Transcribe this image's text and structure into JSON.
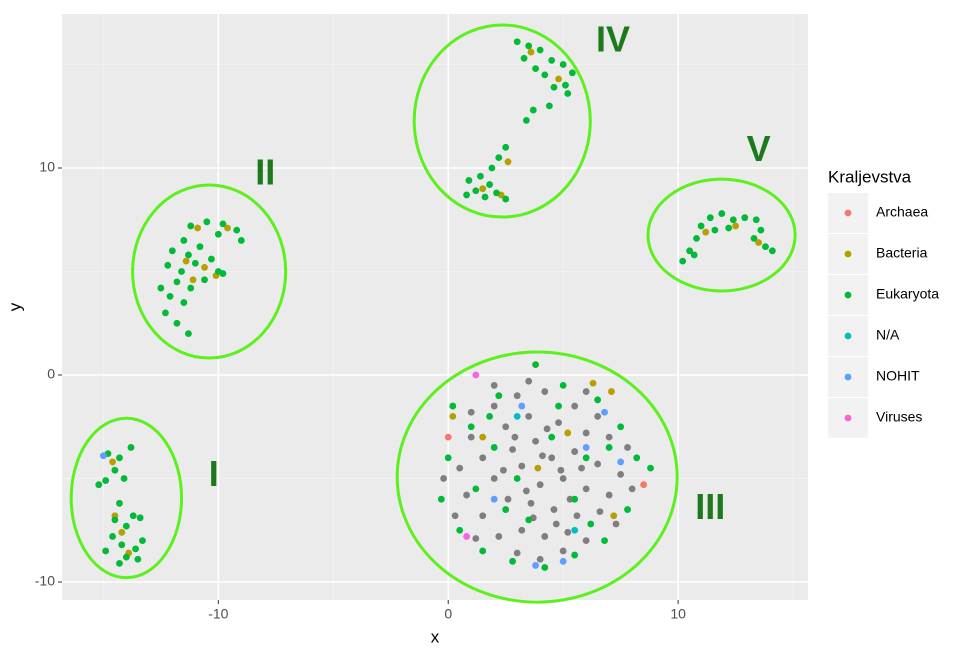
{
  "chart_data": {
    "type": "scatter",
    "xlabel": "x",
    "ylabel": "y",
    "legend_title": "Kraljevstva",
    "xlim": [
      -16.8,
      15.65
    ],
    "ylim": [
      -10.87,
      17.44
    ],
    "xticks": [
      -10,
      0,
      10
    ],
    "yticks": [
      -10,
      0,
      10
    ],
    "x_minor_grid": [
      -15,
      -5,
      5,
      15
    ],
    "y_minor_grid": [
      -5,
      5,
      15
    ],
    "grid": true,
    "legend": "right",
    "series": [
      {
        "name": null,
        "color": "#7f7f7f",
        "x": [
          2.0,
          3.0,
          4.2,
          5.5,
          6.5,
          1.0,
          2.5,
          3.5,
          4.8,
          6.0,
          7.0,
          0.5,
          1.5,
          2.8,
          3.8,
          4.5,
          5.5,
          6.5,
          7.5,
          0.8,
          2.0,
          3.2,
          4.0,
          5.0,
          6.0,
          7.0,
          1.5,
          2.6,
          3.6,
          4.6,
          5.6,
          6.6,
          2.2,
          3.2,
          4.2,
          5.2,
          6.0,
          3.0,
          4.0,
          5.0,
          1.0,
          2.0,
          3.5,
          6.0,
          7.8,
          8.0,
          -0.2,
          0.3,
          1.2,
          7.3,
          4.3,
          3.4,
          4.9,
          2.4,
          5.8,
          4.1,
          3.7,
          4.7,
          2.9,
          5.3
        ],
        "values": [
          -1.5,
          -1.0,
          -0.8,
          -1.5,
          -2.0,
          -3.0,
          -2.5,
          -2.0,
          -2.3,
          -2.8,
          -3.0,
          -4.5,
          -4.0,
          -3.6,
          -3.2,
          -4.0,
          -3.7,
          -4.3,
          -4.8,
          -5.8,
          -5.0,
          -4.4,
          -5.3,
          -5.0,
          -5.5,
          -5.8,
          -6.8,
          -6.0,
          -6.2,
          -6.5,
          -6.8,
          -6.6,
          -7.8,
          -7.5,
          -7.8,
          -7.6,
          -8.0,
          -8.6,
          -8.9,
          -8.5,
          -1.8,
          -0.5,
          -0.3,
          -0.8,
          -3.5,
          -5.5,
          -5.0,
          -6.8,
          -7.9,
          -7.2,
          -2.6,
          -5.6,
          -4.6,
          -4.6,
          -4.5,
          -3.9,
          -6.9,
          -7.2,
          -3.0,
          -6.0
        ]
      },
      {
        "name": "Archaea",
        "color": "#F8766D",
        "x": [
          8.5,
          0.0
        ],
        "values": [
          -5.3,
          -3.0
        ]
      },
      {
        "name": "Bacteria",
        "color": "#B79F00",
        "x": [
          -14.5,
          -14.2,
          -14.6,
          -13.9,
          -10.9,
          -11.4,
          -10.6,
          -10.1,
          -9.6,
          -11.1,
          3.6,
          4.8,
          1.5,
          2.3,
          2.6,
          12.5,
          13.5,
          11.2,
          6.3,
          7.1,
          1.5,
          3.9,
          5.2,
          7.2,
          0.2
        ],
        "values": [
          -6.8,
          -7.6,
          -4.2,
          -8.6,
          7.1,
          5.5,
          5.2,
          4.8,
          7.1,
          4.6,
          15.6,
          14.3,
          9.0,
          8.7,
          10.3,
          7.2,
          6.4,
          6.9,
          -0.4,
          -0.8,
          -3.0,
          -4.5,
          -2.8,
          -6.8,
          -2.0
        ]
      },
      {
        "name": "Eukaryota",
        "color": "#00BA38",
        "x": [
          -14.8,
          -14.3,
          -13.8,
          -14.5,
          -14.1,
          -15.2,
          -14.9,
          -14.3,
          -13.7,
          -14.5,
          -14.0,
          -13.4,
          -14.6,
          -14.2,
          -13.6,
          -13.3,
          -14.0,
          -13.5,
          -14.3,
          -14.9,
          -11.2,
          -10.5,
          -9.8,
          -9.2,
          -9.0,
          -10.0,
          -11.5,
          -12.0,
          -11.3,
          -10.8,
          -12.2,
          -11.6,
          -11.0,
          -10.3,
          -10.0,
          -11.8,
          -11.2,
          -10.6,
          -12.1,
          -11.5,
          -12.3,
          -11.8,
          -11.3,
          -9.8,
          -12.5,
          3.0,
          3.5,
          4.0,
          4.5,
          5.0,
          5.4,
          5.1,
          4.6,
          4.2,
          3.8,
          3.3,
          5.2,
          4.4,
          3.7,
          3.4,
          2.5,
          2.2,
          1.9,
          1.4,
          0.9,
          1.2,
          1.6,
          2.1,
          2.5,
          1.8,
          0.8,
          10.2,
          10.5,
          10.8,
          11.0,
          11.4,
          11.9,
          12.4,
          12.9,
          13.4,
          13.6,
          13.3,
          13.8,
          14.1,
          11.6,
          12.2,
          10.7,
          0.2,
          1.0,
          2.2,
          3.8,
          5.0,
          6.5,
          7.5,
          8.2,
          8.8,
          0.0,
          -0.3,
          0.5,
          1.5,
          2.8,
          4.2,
          5.5,
          6.8,
          7.8,
          2.0,
          3.0,
          4.5,
          5.5,
          6.0,
          1.2,
          3.5,
          7.0,
          2.5,
          4.8,
          6.2,
          1.8
        ],
        "values": [
          -3.8,
          -4.0,
          -3.5,
          -4.6,
          -5.0,
          -5.3,
          -5.1,
          -6.2,
          -6.8,
          -7.0,
          -7.3,
          -6.9,
          -7.8,
          -8.2,
          -8.4,
          -8.0,
          -8.8,
          -8.9,
          -9.1,
          -8.5,
          7.2,
          7.4,
          7.3,
          7.0,
          6.5,
          6.8,
          6.5,
          6.0,
          5.8,
          6.2,
          5.3,
          5.0,
          5.4,
          5.6,
          5.0,
          4.5,
          4.2,
          4.6,
          3.8,
          3.5,
          3.0,
          2.5,
          2.0,
          4.9,
          4.2,
          16.1,
          15.9,
          15.7,
          15.2,
          15.0,
          14.6,
          14.0,
          13.9,
          14.5,
          14.8,
          15.3,
          13.6,
          13.0,
          12.8,
          12.3,
          11.0,
          10.5,
          10.0,
          9.6,
          9.4,
          8.9,
          8.6,
          8.8,
          8.5,
          9.2,
          8.7,
          5.5,
          6.0,
          6.6,
          7.2,
          7.6,
          7.8,
          7.5,
          7.6,
          7.5,
          7.0,
          6.6,
          6.2,
          6.0,
          7.0,
          7.1,
          5.8,
          -1.5,
          -2.5,
          -1.0,
          0.5,
          -0.5,
          -1.2,
          -2.5,
          -4.0,
          -4.5,
          -4.0,
          -6.0,
          -7.5,
          -8.5,
          -9.0,
          -9.3,
          -8.7,
          -8.0,
          -6.5,
          -3.5,
          -5.0,
          -3.0,
          -6.0,
          -4.0,
          -5.5,
          -7.0,
          -3.5,
          -6.5,
          -1.5,
          -7.2,
          -2.0
        ]
      },
      {
        "name": "N/A",
        "color": "#00BFC4",
        "x": [
          3.0,
          5.5
        ],
        "values": [
          -2.0,
          -7.5
        ]
      },
      {
        "name": "NOHIT",
        "color": "#619CFF",
        "x": [
          -15.0,
          3.2,
          6.8,
          7.5,
          5.0,
          2.0,
          3.8,
          6.0
        ],
        "values": [
          -3.9,
          -1.5,
          -1.8,
          -4.2,
          -9.0,
          -6.0,
          -9.2,
          -3.5
        ]
      },
      {
        "name": "Viruses",
        "color": "#F564E3",
        "x": [
          1.2,
          0.8
        ],
        "values": [
          0.0,
          -7.8
        ]
      }
    ],
    "regions": [
      {
        "label": "I",
        "cx": -14.0,
        "cy": -5.94,
        "rx": 2.4,
        "ry": 3.85,
        "label_x": -10.2,
        "label_y": -4.9
      },
      {
        "label": "II",
        "cx": -10.4,
        "cy": 5.0,
        "rx": 3.33,
        "ry": 4.18,
        "label_x": -7.96,
        "label_y": 9.66
      },
      {
        "label": "III",
        "cx": 3.87,
        "cy": -4.93,
        "rx": 6.09,
        "ry": 6.04,
        "label_x": 11.4,
        "label_y": -6.5
      },
      {
        "label": "IV",
        "cx": 2.35,
        "cy": 12.27,
        "rx": 3.83,
        "ry": 4.64,
        "label_x": 7.17,
        "label_y": 16.1
      },
      {
        "label": "V",
        "cx": 11.89,
        "cy": 6.76,
        "rx": 3.2,
        "ry": 2.7,
        "label_x": 13.5,
        "label_y": 10.8
      }
    ],
    "region_color": "#5ef01e"
  }
}
